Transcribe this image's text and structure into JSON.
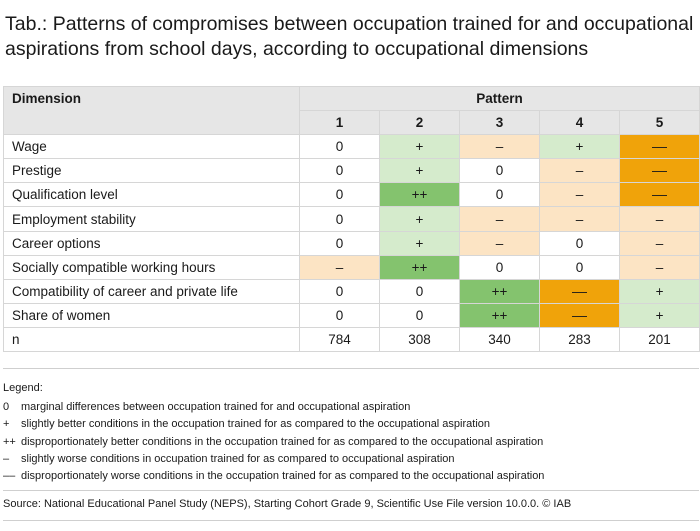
{
  "title": "Tab.: Patterns of compromises between occupation trained for and occupational aspirations from school days, according to occupational dimensions",
  "table": {
    "dimension_header": "Dimension",
    "pattern_header": "Pattern",
    "pattern_numbers": [
      "1",
      "2",
      "3",
      "4",
      "5"
    ],
    "rows": [
      {
        "label": "Wage",
        "cells": [
          "0",
          "+",
          "–",
          "+",
          "––"
        ],
        "shades": [
          "none",
          "better",
          "worse",
          "better",
          "muchw"
        ]
      },
      {
        "label": "Prestige",
        "cells": [
          "0",
          "+",
          "0",
          "–",
          "––"
        ],
        "shades": [
          "none",
          "better",
          "none",
          "worse",
          "muchw"
        ]
      },
      {
        "label": "Qualification level",
        "cells": [
          "0",
          "++",
          "0",
          "–",
          "––"
        ],
        "shades": [
          "none",
          "much",
          "none",
          "worse",
          "muchw"
        ]
      },
      {
        "label": "Employment stability",
        "cells": [
          "0",
          "+",
          "–",
          "–",
          "–"
        ],
        "shades": [
          "none",
          "better",
          "worse",
          "worse",
          "worse"
        ]
      },
      {
        "label": "Career options",
        "cells": [
          "0",
          "+",
          "–",
          "0",
          "–"
        ],
        "shades": [
          "none",
          "better",
          "worse",
          "none",
          "worse"
        ]
      },
      {
        "label": "Socially compatible working hours",
        "cells": [
          "–",
          "++",
          "0",
          "0",
          "–"
        ],
        "shades": [
          "worse",
          "much",
          "none",
          "none",
          "worse"
        ]
      },
      {
        "label": "Compatibility of career and private life",
        "cells": [
          "0",
          "0",
          "++",
          "––",
          "+"
        ],
        "shades": [
          "none",
          "none",
          "much",
          "muchw",
          "better"
        ]
      },
      {
        "label": "Share of women",
        "cells": [
          "0",
          "0",
          "++",
          "––",
          "+"
        ],
        "shades": [
          "none",
          "none",
          "much",
          "muchw",
          "better"
        ]
      },
      {
        "label": "n",
        "cells": [
          "784",
          "308",
          "340",
          "283",
          "201"
        ],
        "shades": [
          "none",
          "none",
          "none",
          "none",
          "none"
        ]
      }
    ]
  },
  "legend": {
    "title": "Legend:",
    "items": [
      {
        "symbol": "0",
        "text": "marginal differences between occupation trained for and occupational aspiration"
      },
      {
        "symbol": "+",
        "text": "slightly better conditions in the occupation trained for as compared to the occupational aspiration"
      },
      {
        "symbol": "++",
        "text": "disproportionately better conditions in the occupation trained for as compared to the occupational aspiration"
      },
      {
        "symbol": "–",
        "text": "slightly worse conditions in occupation trained for as compared to occupational aspiration"
      },
      {
        "symbol": "––",
        "text": "disproportionately worse conditions in the occupation trained for as compared to the occupational aspiration"
      }
    ]
  },
  "source": "Source: National Educational Panel Study (NEPS), Starting Cohort Grade 9, Scientific Use File version 10.0.0. © IAB",
  "colors": {
    "header_bg": "#e6e6e6",
    "slightly_better": "#d5ebcc",
    "much_better": "#84c36e",
    "slightly_worse": "#fce4c4",
    "much_worse": "#f0a30a"
  }
}
